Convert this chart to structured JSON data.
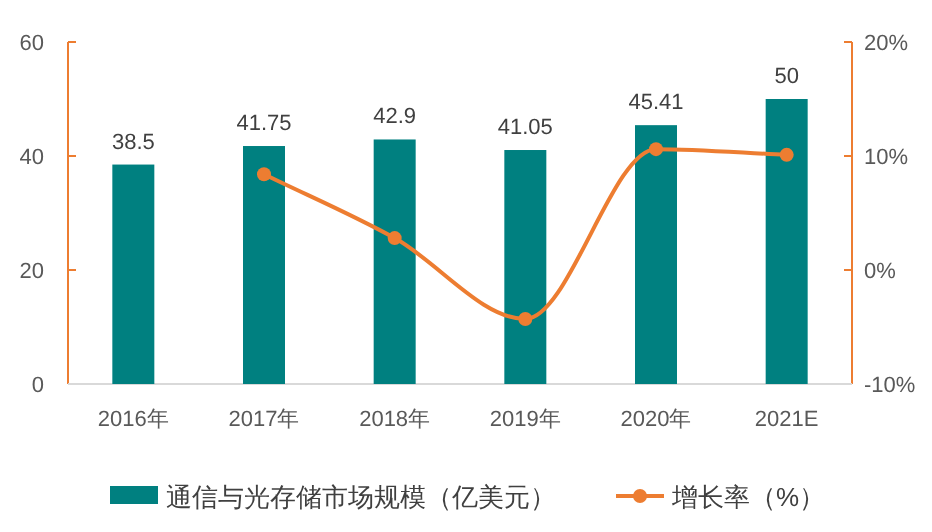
{
  "chart_data": {
    "type": "bar",
    "categories": [
      "2016年",
      "2017年",
      "2018年",
      "2019年",
      "2020年",
      "2021E"
    ],
    "series": [
      {
        "name": "通信与光存储市场规模（亿美元）",
        "color": "#008080",
        "values": [
          38.5,
          41.75,
          42.9,
          41.05,
          45.41,
          50
        ],
        "value_labels": [
          "38.5",
          "41.75",
          "42.9",
          "41.05",
          "45.41",
          "50"
        ]
      },
      {
        "name": "增长率（%）",
        "type": "line",
        "axis": "y2",
        "color": "#ed7d31",
        "marker": "circle",
        "values": [
          null,
          8.4,
          2.8,
          -4.3,
          10.6,
          10.1
        ]
      }
    ],
    "ylim": [
      0,
      60
    ],
    "yticks": [
      0,
      20,
      40,
      60
    ],
    "y2lim": [
      -10,
      20
    ],
    "y2ticks": [
      {
        "value": -10,
        "label": "-10%"
      },
      {
        "value": 0,
        "label": "0%"
      },
      {
        "value": 10,
        "label": "10%"
      },
      {
        "value": 20,
        "label": "20%"
      }
    ],
    "grid": false,
    "legend": "bottom"
  }
}
